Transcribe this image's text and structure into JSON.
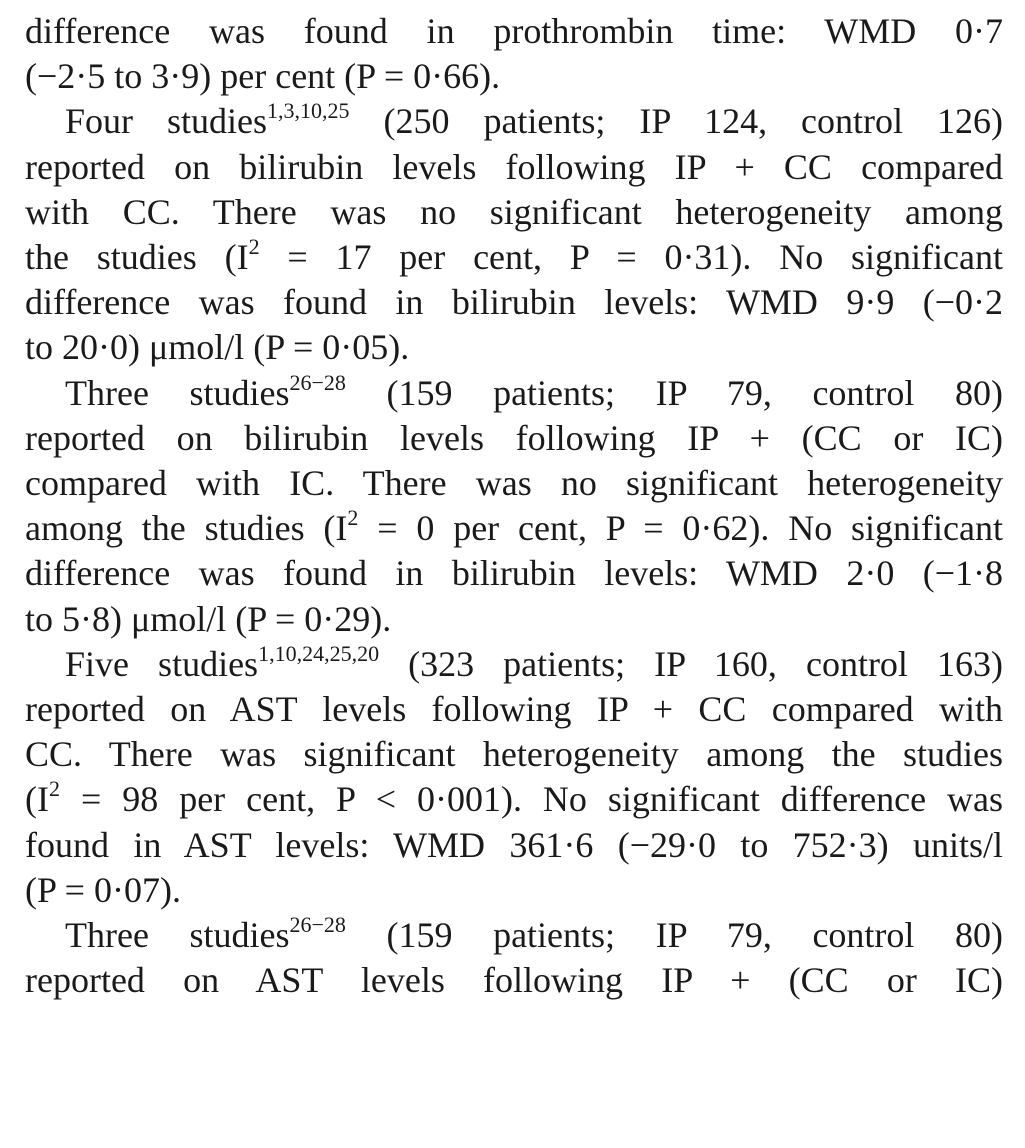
{
  "lines": [
    {
      "text": "difference was found in prothrombin time: WMD 0·7",
      "justify": true,
      "indent": false
    },
    {
      "text": "(−2·5 to 3·9) per cent (P = 0·66).",
      "justify": false,
      "indent": false
    },
    {
      "pre": "Four studies",
      "sup": "1,3,10,25",
      "post": " (250 patients; IP 124, control 126)",
      "justify": true,
      "indent": true
    },
    {
      "text": "reported on bilirubin levels following IP + CC compared",
      "justify": true,
      "indent": false
    },
    {
      "text": "with CC. There was no significant heterogeneity among",
      "justify": true,
      "indent": false
    },
    {
      "pre": "the studies (I",
      "sup": "2",
      "post": " = 17 per cent, P = 0·31). No significant",
      "justify": true,
      "indent": false
    },
    {
      "text": "difference was found in bilirubin levels: WMD 9·9 (−0·2",
      "justify": true,
      "indent": false
    },
    {
      "text": "to 20·0) μmol/l (P = 0·05).",
      "justify": false,
      "indent": false
    },
    {
      "pre": "Three studies",
      "sup": "26−28",
      "post": " (159 patients; IP 79, control 80)",
      "justify": true,
      "indent": true
    },
    {
      "text": "reported on bilirubin levels following IP + (CC or IC)",
      "justify": true,
      "indent": false
    },
    {
      "text": "compared with IC. There was no significant heterogeneity",
      "justify": true,
      "indent": false
    },
    {
      "pre": "among the studies (I",
      "sup": "2",
      "post": " = 0 per cent, P = 0·62). No significant",
      "justify": true,
      "indent": false
    },
    {
      "text": "difference was found in bilirubin levels: WMD 2·0 (−1·8",
      "justify": true,
      "indent": false
    },
    {
      "text": "to 5·8) μmol/l (P = 0·29).",
      "justify": false,
      "indent": false
    },
    {
      "pre": "Five studies",
      "sup": "1,10,24,25,20",
      "post": " (323 patients; IP 160, control 163)",
      "justify": true,
      "indent": true
    },
    {
      "text": "reported on AST levels following IP + CC compared with",
      "justify": true,
      "indent": false
    },
    {
      "text": "CC. There was significant heterogeneity among the studies",
      "justify": true,
      "indent": false
    },
    {
      "pre": "(I",
      "sup": "2",
      "post": " = 98 per cent, P < 0·001). No significant difference was",
      "justify": true,
      "indent": false
    },
    {
      "text": "found in AST levels: WMD 361·6 (−29·0 to 752·3) units/l",
      "justify": true,
      "indent": false
    },
    {
      "text": "(P = 0·07).",
      "justify": false,
      "indent": false
    },
    {
      "pre": "Three studies",
      "sup": "26−28",
      "post": " (159 patients; IP 79, control 80)",
      "justify": true,
      "indent": true
    },
    {
      "text": "reported on AST levels following IP + (CC or IC)",
      "justify": true,
      "indent": false
    }
  ]
}
